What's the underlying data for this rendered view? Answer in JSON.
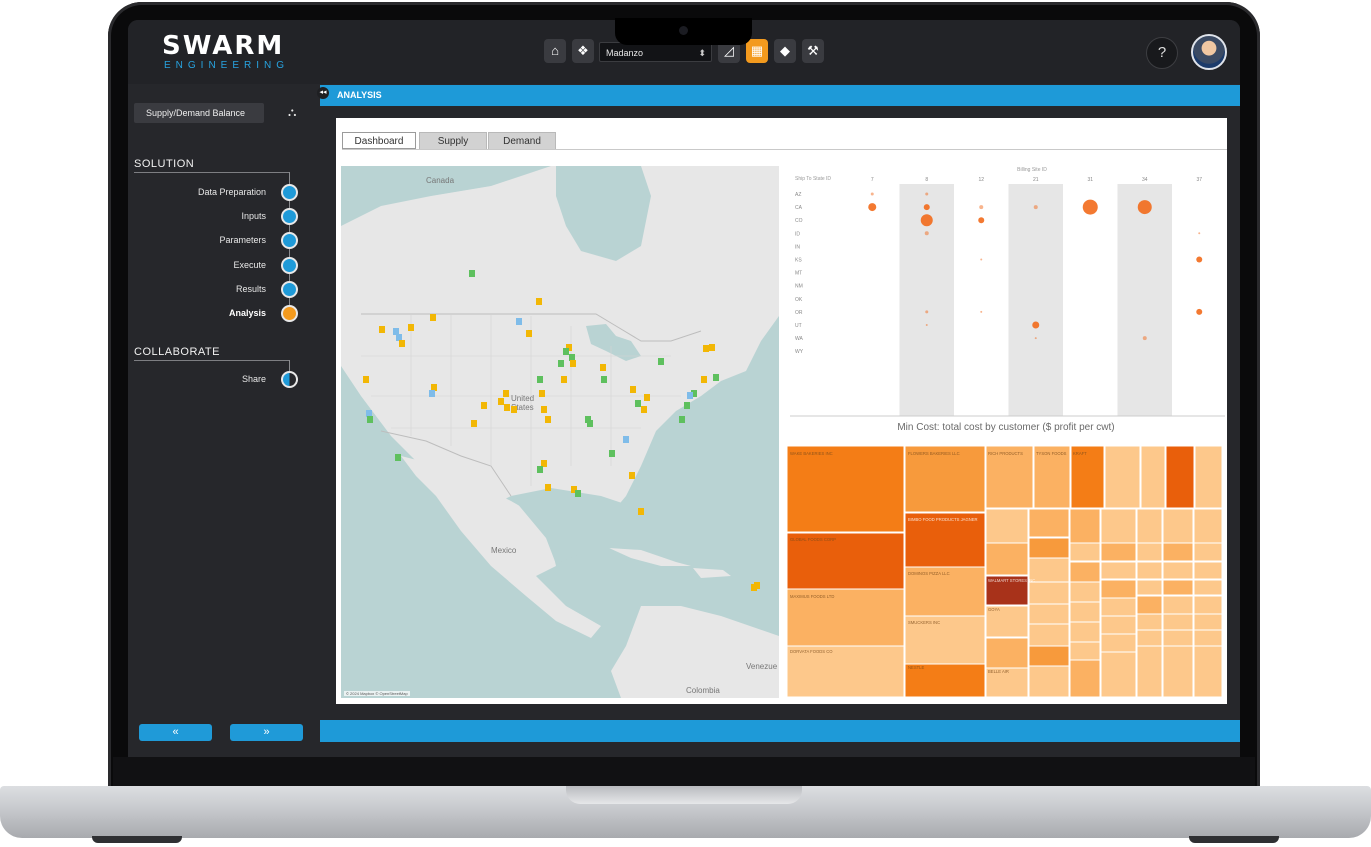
{
  "app": {
    "brand": "SWARM",
    "brand_sub": "ENGINEERING"
  },
  "toolbar": {
    "project_select": "Madanzo",
    "help_label": "?",
    "buttons": [
      {
        "name": "home-button",
        "icon": "home-icon",
        "glyph": "⌂",
        "active": false
      },
      {
        "name": "brain-button",
        "icon": "brain-icon",
        "glyph": "❖",
        "active": false
      },
      {
        "name": "chart-button",
        "icon": "chart-icon",
        "glyph": "◿",
        "active": false
      },
      {
        "name": "dashboard-button",
        "icon": "dashboard-icon",
        "glyph": "▦",
        "active": true
      },
      {
        "name": "tag-button",
        "icon": "tag-icon",
        "glyph": "◆",
        "active": false
      },
      {
        "name": "hammer-button",
        "icon": "hammer-icon",
        "glyph": "⚒",
        "active": false
      }
    ]
  },
  "sidebar": {
    "model_select": "Supply/Demand Balance",
    "solution_heading": "SOLUTION",
    "steps": [
      {
        "label": "Data Preparation",
        "state": "done"
      },
      {
        "label": "Inputs",
        "state": "done"
      },
      {
        "label": "Parameters",
        "state": "done"
      },
      {
        "label": "Execute",
        "state": "done"
      },
      {
        "label": "Results",
        "state": "done"
      },
      {
        "label": "Analysis",
        "state": "current"
      }
    ],
    "collaborate_heading": "COLLABORATE",
    "collab_steps": [
      {
        "label": "Share",
        "state": "partial"
      }
    ],
    "prev_label": "«",
    "next_label": "»"
  },
  "main": {
    "title": "ANALYSIS",
    "tabs": [
      "Dashboard",
      "Supply",
      "Demand"
    ],
    "active_tab": "Dashboard",
    "map": {
      "labels": [
        "Canada",
        "United States",
        "Mexico",
        "Venezue",
        "Colombia"
      ],
      "attribution": "© 2024 Mapbox © OpenStreetMap"
    },
    "bubble_chart": {
      "column_header": "Billing Site ID",
      "row_header": "Ship To State ID",
      "columns": [
        "7",
        "8",
        "12",
        "21",
        "31",
        "34",
        "37"
      ],
      "rows": [
        "AZ",
        "CA",
        "CO",
        "ID",
        "IN",
        "KS",
        "MT",
        "NM",
        "OK",
        "OR",
        "UT",
        "WA",
        "WY"
      ]
    },
    "treemap": {
      "title": "Min Cost: total cost by customer ($ profit per cwt)",
      "labels": [
        "WAKE BAKERIES INC",
        "GLOBAL FOODS CORP",
        "MAXIMUS FOODS LTD",
        "DORVATA FOODS CO",
        "FLOWERS BAKERIES LLC",
        "BIMBO FOOD PRODUCTS JAGNER",
        "DOMINOS PIZZA LLC",
        "WALMART STORES INC",
        "SMUCKERS INC",
        "RICH PRODUCTS",
        "TYSON FOODS",
        "KRAFT",
        "GOYA",
        "BELLE AIR",
        "NESTLE"
      ]
    }
  },
  "colors": {
    "accent_blue": "#1e9ad8",
    "accent_orange": "#f39a1e"
  }
}
